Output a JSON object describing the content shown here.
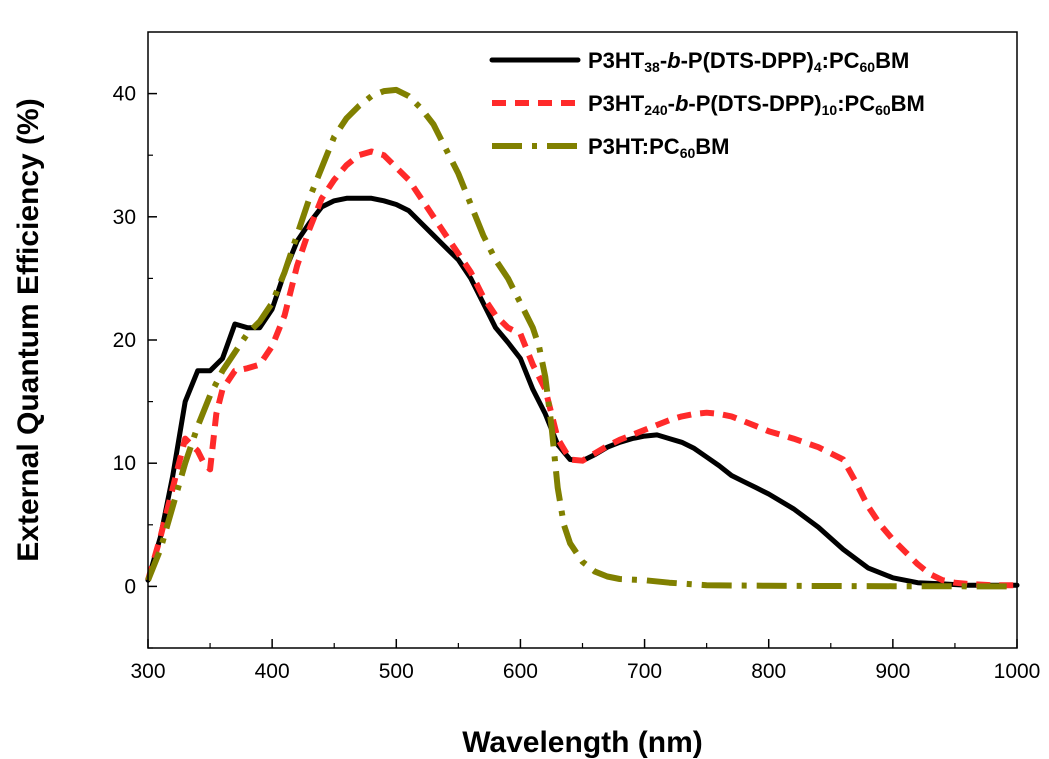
{
  "chart_data": {
    "type": "line",
    "title": "",
    "xlabel": "Wavelength (nm)",
    "ylabel": "External Quantum Efficiency (%)",
    "xlim": [
      300,
      1000
    ],
    "ylim": [
      -5,
      45
    ],
    "xticks": [
      300,
      400,
      500,
      600,
      700,
      800,
      900,
      1000
    ],
    "yticks": [
      0,
      10,
      20,
      30,
      40
    ],
    "grid": false,
    "legend_position": "top-right",
    "series": [
      {
        "legend_parts": [
          {
            "t": "P3HT",
            "s": "n"
          },
          {
            "t": "38",
            "s": "sub"
          },
          {
            "t": "-",
            "s": "n"
          },
          {
            "t": "b",
            "s": "it"
          },
          {
            "t": "-P(DTS-DPP)",
            "s": "n"
          },
          {
            "t": "4",
            "s": "sub"
          },
          {
            "t": ":PC",
            "s": "n"
          },
          {
            "t": "60",
            "s": "sub"
          },
          {
            "t": "BM",
            "s": "n"
          }
        ],
        "color": "#000000",
        "style": "solid",
        "x": [
          300,
          310,
          320,
          330,
          340,
          350,
          360,
          370,
          380,
          390,
          400,
          410,
          420,
          430,
          440,
          450,
          460,
          470,
          480,
          490,
          500,
          510,
          520,
          530,
          540,
          550,
          560,
          570,
          580,
          590,
          600,
          610,
          620,
          630,
          640,
          650,
          660,
          670,
          680,
          690,
          700,
          710,
          720,
          730,
          740,
          750,
          760,
          770,
          780,
          790,
          800,
          820,
          840,
          860,
          880,
          900,
          920,
          940,
          960,
          980,
          1000
        ],
        "y": [
          0.5,
          4,
          9,
          15,
          17.5,
          17.5,
          18.5,
          21.3,
          21,
          21,
          22.5,
          25.5,
          28,
          29.5,
          30.8,
          31.3,
          31.5,
          31.5,
          31.5,
          31.3,
          31,
          30.5,
          29.5,
          28.5,
          27.5,
          26.5,
          25,
          23,
          21,
          19.8,
          18.5,
          16,
          14,
          11.5,
          10.3,
          10.2,
          10.7,
          11.3,
          11.7,
          12,
          12.2,
          12.3,
          12,
          11.7,
          11.2,
          10.5,
          9.8,
          9,
          8.5,
          8,
          7.5,
          6.3,
          4.8,
          3,
          1.5,
          0.7,
          0.3,
          0.2,
          0.1,
          0.1,
          0.1
        ]
      },
      {
        "legend_parts": [
          {
            "t": "P3HT",
            "s": "n"
          },
          {
            "t": "240",
            "s": "sub"
          },
          {
            "t": "-",
            "s": "n"
          },
          {
            "t": "b",
            "s": "it"
          },
          {
            "t": "-P(DTS-DPP)",
            "s": "n"
          },
          {
            "t": "10",
            "s": "sub"
          },
          {
            "t": ":PC",
            "s": "n"
          },
          {
            "t": "60",
            "s": "sub"
          },
          {
            "t": "BM",
            "s": "n"
          }
        ],
        "color": "#ff2a2a",
        "style": "dash",
        "x": [
          300,
          310,
          320,
          330,
          340,
          345,
          350,
          355,
          360,
          370,
          380,
          390,
          400,
          410,
          420,
          430,
          440,
          450,
          460,
          470,
          480,
          490,
          500,
          510,
          520,
          530,
          540,
          550,
          560,
          570,
          580,
          590,
          600,
          610,
          620,
          630,
          640,
          650,
          660,
          670,
          680,
          690,
          700,
          710,
          720,
          730,
          740,
          750,
          760,
          770,
          780,
          790,
          800,
          820,
          840,
          860,
          870,
          880,
          890,
          900,
          910,
          920,
          930,
          940,
          950,
          960,
          980,
          1000
        ],
        "y": [
          0.5,
          4,
          8,
          12,
          11,
          10,
          9.5,
          14,
          16,
          17.5,
          17.7,
          18,
          19.5,
          22,
          26,
          29,
          31.5,
          33,
          34.2,
          35,
          35.3,
          35,
          34,
          33,
          31.5,
          30,
          28.5,
          27,
          25.5,
          23.5,
          22,
          21,
          20.5,
          18,
          16,
          12,
          10.3,
          10.2,
          10.8,
          11.4,
          11.9,
          12.3,
          12.7,
          13.1,
          13.5,
          13.8,
          14,
          14.1,
          14,
          13.8,
          13.4,
          13,
          12.6,
          12,
          11.3,
          10.3,
          8.5,
          6.5,
          5,
          3.8,
          2.8,
          1.8,
          1,
          0.5,
          0.3,
          0.2,
          0.1,
          0.1
        ]
      },
      {
        "legend_parts": [
          {
            "t": "P3HT:PC",
            "s": "n"
          },
          {
            "t": "60",
            "s": "sub"
          },
          {
            "t": "BM",
            "s": "n"
          }
        ],
        "color": "#808000",
        "style": "dashdot",
        "x": [
          300,
          310,
          320,
          330,
          340,
          350,
          360,
          370,
          380,
          390,
          400,
          410,
          420,
          430,
          440,
          450,
          460,
          470,
          480,
          490,
          500,
          510,
          520,
          530,
          540,
          550,
          560,
          570,
          580,
          590,
          600,
          610,
          615,
          620,
          625,
          630,
          635,
          640,
          650,
          660,
          670,
          680,
          700,
          720,
          750,
          800,
          850,
          900,
          950,
          1000
        ],
        "y": [
          0.5,
          3,
          6.5,
          10,
          13,
          15.5,
          17.5,
          19,
          20.5,
          21.5,
          23,
          25.5,
          28.5,
          31.5,
          34,
          36.5,
          38,
          39,
          39.8,
          40.2,
          40.3,
          39.8,
          38.8,
          37.5,
          35.5,
          33.5,
          31,
          28.5,
          26.5,
          25,
          23,
          21,
          19.5,
          17,
          13,
          8,
          5,
          3.5,
          2,
          1.2,
          0.8,
          0.6,
          0.5,
          0.3,
          0.1,
          0.05,
          0.03,
          0.02,
          0.01,
          0
        ]
      }
    ]
  }
}
